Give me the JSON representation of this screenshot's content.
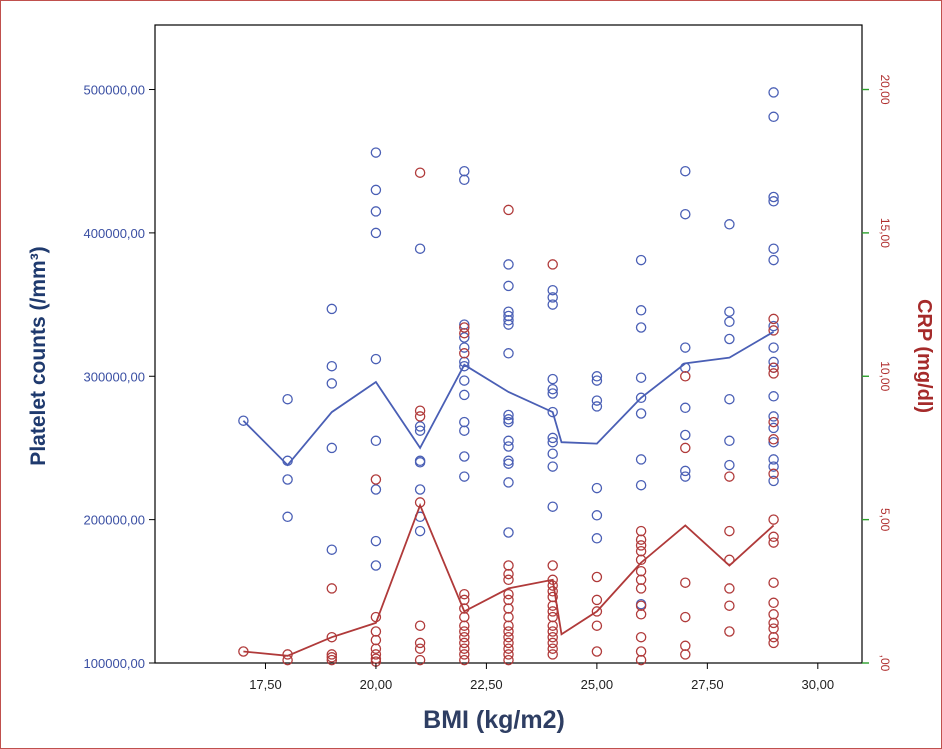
{
  "chart_data": {
    "type": "scatter",
    "title": "",
    "xlabel": "BMI (kg/m2)",
    "ylabel": "Platelet counts (/mm³)",
    "y2label": "CRP (mg/dl)",
    "xlim": [
      15.0,
      31.0
    ],
    "ylim": [
      100000,
      545000
    ],
    "y2lim": [
      0,
      22.25
    ],
    "x_ticks": [
      17.5,
      20.0,
      22.5,
      25.0,
      27.5,
      30.0
    ],
    "x_tick_labels": [
      "17,50",
      "20,00",
      "22,50",
      "25,00",
      "27,50",
      "30,00"
    ],
    "y_ticks": [
      100000,
      200000,
      300000,
      400000,
      500000
    ],
    "y_tick_labels": [
      "100000,00",
      "200000,00",
      "300000,00",
      "400000,00",
      "500000,00"
    ],
    "y2_ticks": [
      0,
      5,
      10,
      15,
      20
    ],
    "y2_tick_labels": [
      ",00",
      "5,00",
      "10,00",
      "15,00",
      "20,00"
    ],
    "grid": false,
    "colors": {
      "platelet": "#4a5fb5",
      "crp": "#b03a3a",
      "y2_ticks": "#2ca02c"
    },
    "series": [
      {
        "name": "Platelet counts",
        "axis": "left",
        "kind": "scatter",
        "points": [
          [
            17,
            269000
          ],
          [
            18,
            284000
          ],
          [
            18,
            241000
          ],
          [
            18,
            228000
          ],
          [
            18,
            202000
          ],
          [
            19,
            347000
          ],
          [
            19,
            307000
          ],
          [
            19,
            295000
          ],
          [
            19,
            250000
          ],
          [
            19,
            179000
          ],
          [
            20,
            456000
          ],
          [
            20,
            430000
          ],
          [
            20,
            415000
          ],
          [
            20,
            400000
          ],
          [
            20,
            312000
          ],
          [
            20,
            255000
          ],
          [
            20,
            221000
          ],
          [
            20,
            185000
          ],
          [
            20,
            168000
          ],
          [
            21,
            389000
          ],
          [
            21,
            265000
          ],
          [
            21,
            262000
          ],
          [
            21,
            241000
          ],
          [
            21,
            240000
          ],
          [
            21,
            221000
          ],
          [
            21,
            202000
          ],
          [
            21,
            192000
          ],
          [
            22,
            443000
          ],
          [
            22,
            437000
          ],
          [
            22,
            336000
          ],
          [
            22,
            327000
          ],
          [
            22,
            320000
          ],
          [
            22,
            310000
          ],
          [
            22,
            307000
          ],
          [
            22,
            297000
          ],
          [
            22,
            287000
          ],
          [
            22,
            268000
          ],
          [
            22,
            262000
          ],
          [
            22,
            244000
          ],
          [
            22,
            230000
          ],
          [
            23,
            378000
          ],
          [
            23,
            363000
          ],
          [
            23,
            345000
          ],
          [
            23,
            342000
          ],
          [
            23,
            339000
          ],
          [
            23,
            336000
          ],
          [
            23,
            316000
          ],
          [
            23,
            273000
          ],
          [
            23,
            270000
          ],
          [
            23,
            268000
          ],
          [
            23,
            255000
          ],
          [
            23,
            251000
          ],
          [
            23,
            241000
          ],
          [
            23,
            239000
          ],
          [
            23,
            226000
          ],
          [
            23,
            191000
          ],
          [
            24,
            360000
          ],
          [
            24,
            355000
          ],
          [
            24,
            350000
          ],
          [
            24,
            298000
          ],
          [
            24,
            291000
          ],
          [
            24,
            288000
          ],
          [
            24,
            275000
          ],
          [
            24,
            257000
          ],
          [
            24,
            254000
          ],
          [
            24,
            246000
          ],
          [
            24,
            237000
          ],
          [
            24,
            209000
          ],
          [
            25,
            300000
          ],
          [
            25,
            297000
          ],
          [
            25,
            283000
          ],
          [
            25,
            279000
          ],
          [
            25,
            222000
          ],
          [
            25,
            203000
          ],
          [
            25,
            187000
          ],
          [
            26,
            381000
          ],
          [
            26,
            346000
          ],
          [
            26,
            334000
          ],
          [
            26,
            299000
          ],
          [
            26,
            285000
          ],
          [
            26,
            274000
          ],
          [
            26,
            242000
          ],
          [
            26,
            224000
          ],
          [
            26,
            141000
          ],
          [
            27,
            443000
          ],
          [
            27,
            413000
          ],
          [
            27,
            320000
          ],
          [
            27,
            306000
          ],
          [
            27,
            278000
          ],
          [
            27,
            259000
          ],
          [
            27,
            234000
          ],
          [
            27,
            230000
          ],
          [
            28,
            406000
          ],
          [
            28,
            345000
          ],
          [
            28,
            338000
          ],
          [
            28,
            326000
          ],
          [
            28,
            284000
          ],
          [
            28,
            255000
          ],
          [
            28,
            238000
          ],
          [
            29,
            498000
          ],
          [
            29,
            481000
          ],
          [
            29,
            425000
          ],
          [
            29,
            422000
          ],
          [
            29,
            389000
          ],
          [
            29,
            381000
          ],
          [
            29,
            335000
          ],
          [
            29,
            320000
          ],
          [
            29,
            310000
          ],
          [
            29,
            306000
          ],
          [
            29,
            286000
          ],
          [
            29,
            272000
          ],
          [
            29,
            264000
          ],
          [
            29,
            254000
          ],
          [
            29,
            242000
          ],
          [
            29,
            237000
          ],
          [
            29,
            227000
          ]
        ]
      },
      {
        "name": "CRP",
        "axis": "right",
        "kind": "scatter",
        "points": [
          [
            17,
            0.4
          ],
          [
            18,
            0.3
          ],
          [
            18,
            0.1
          ],
          [
            19,
            2.6
          ],
          [
            19,
            0.9
          ],
          [
            19,
            0.3
          ],
          [
            19,
            0.2
          ],
          [
            19,
            0.1
          ],
          [
            20,
            6.4
          ],
          [
            20,
            1.6
          ],
          [
            20,
            1.1
          ],
          [
            20,
            0.8
          ],
          [
            20,
            0.5
          ],
          [
            20,
            0.3
          ],
          [
            20,
            0.15
          ],
          [
            20,
            0.05
          ],
          [
            21,
            17.1
          ],
          [
            21,
            8.8
          ],
          [
            21,
            8.6
          ],
          [
            21,
            5.6
          ],
          [
            21,
            1.3
          ],
          [
            21,
            0.7
          ],
          [
            21,
            0.5
          ],
          [
            21,
            0.1
          ],
          [
            22,
            11.7
          ],
          [
            22,
            11.5
          ],
          [
            22,
            10.8
          ],
          [
            22,
            2.4
          ],
          [
            22,
            2.2
          ],
          [
            22,
            1.9
          ],
          [
            22,
            1.6
          ],
          [
            22,
            1.3
          ],
          [
            22,
            1.1
          ],
          [
            22,
            0.9
          ],
          [
            22,
            0.7
          ],
          [
            22,
            0.5
          ],
          [
            22,
            0.3
          ],
          [
            22,
            0.1
          ],
          [
            23,
            15.8
          ],
          [
            23,
            3.4
          ],
          [
            23,
            3.1
          ],
          [
            23,
            2.9
          ],
          [
            23,
            2.4
          ],
          [
            23,
            2.2
          ],
          [
            23,
            1.9
          ],
          [
            23,
            1.6
          ],
          [
            23,
            1.3
          ],
          [
            23,
            1.1
          ],
          [
            23,
            0.9
          ],
          [
            23,
            0.7
          ],
          [
            23,
            0.5
          ],
          [
            23,
            0.3
          ],
          [
            23,
            0.1
          ],
          [
            24,
            13.9
          ],
          [
            24,
            3.4
          ],
          [
            24,
            2.9
          ],
          [
            24,
            2.7
          ],
          [
            24,
            2.5
          ],
          [
            24,
            2.3
          ],
          [
            24,
            2.0
          ],
          [
            24,
            1.8
          ],
          [
            24,
            1.6
          ],
          [
            24,
            1.3
          ],
          [
            24,
            1.1
          ],
          [
            24,
            0.9
          ],
          [
            24,
            0.7
          ],
          [
            24,
            0.5
          ],
          [
            24,
            0.3
          ],
          [
            25,
            3.0
          ],
          [
            25,
            2.2
          ],
          [
            25,
            1.8
          ],
          [
            25,
            1.3
          ],
          [
            25,
            0.4
          ],
          [
            26,
            4.6
          ],
          [
            26,
            4.3
          ],
          [
            26,
            4.1
          ],
          [
            26,
            3.9
          ],
          [
            26,
            3.6
          ],
          [
            26,
            3.2
          ],
          [
            26,
            2.9
          ],
          [
            26,
            2.6
          ],
          [
            26,
            2.0
          ],
          [
            26,
            1.7
          ],
          [
            26,
            0.9
          ],
          [
            26,
            0.4
          ],
          [
            26,
            0.1
          ],
          [
            27,
            10.0
          ],
          [
            27,
            7.5
          ],
          [
            27,
            2.8
          ],
          [
            27,
            1.6
          ],
          [
            27,
            0.6
          ],
          [
            27,
            0.3
          ],
          [
            28,
            6.5
          ],
          [
            28,
            4.6
          ],
          [
            28,
            3.6
          ],
          [
            28,
            2.6
          ],
          [
            28,
            2.0
          ],
          [
            28,
            1.1
          ],
          [
            29,
            12.0
          ],
          [
            29,
            11.6
          ],
          [
            29,
            10.3
          ],
          [
            29,
            10.1
          ],
          [
            29,
            8.4
          ],
          [
            29,
            7.8
          ],
          [
            29,
            6.6
          ],
          [
            29,
            5.0
          ],
          [
            29,
            4.4
          ],
          [
            29,
            4.2
          ],
          [
            29,
            2.8
          ],
          [
            29,
            2.1
          ],
          [
            29,
            1.7
          ],
          [
            29,
            1.4
          ],
          [
            29,
            1.2
          ],
          [
            29,
            0.9
          ],
          [
            29,
            0.7
          ]
        ]
      },
      {
        "name": "Platelet counts mean",
        "axis": "left",
        "kind": "line",
        "points": [
          [
            17,
            269000
          ],
          [
            18,
            238000
          ],
          [
            19,
            275000
          ],
          [
            20,
            296000
          ],
          [
            21,
            250000
          ],
          [
            22,
            308000
          ],
          [
            23,
            289000
          ],
          [
            24,
            275000
          ],
          [
            24.2,
            254000
          ],
          [
            25,
            253000
          ],
          [
            26,
            285000
          ],
          [
            27,
            309000
          ],
          [
            28,
            313000
          ],
          [
            29,
            331000
          ]
        ]
      },
      {
        "name": "CRP mean",
        "axis": "right",
        "kind": "line",
        "points": [
          [
            17,
            0.4
          ],
          [
            18,
            0.25
          ],
          [
            19,
            0.9
          ],
          [
            20,
            1.4
          ],
          [
            21,
            5.5
          ],
          [
            22,
            1.8
          ],
          [
            23,
            2.6
          ],
          [
            24,
            2.9
          ],
          [
            24.2,
            1.0
          ],
          [
            25,
            1.8
          ],
          [
            26,
            3.5
          ],
          [
            27,
            4.8
          ],
          [
            28,
            3.4
          ],
          [
            29,
            4.8
          ]
        ]
      }
    ]
  }
}
